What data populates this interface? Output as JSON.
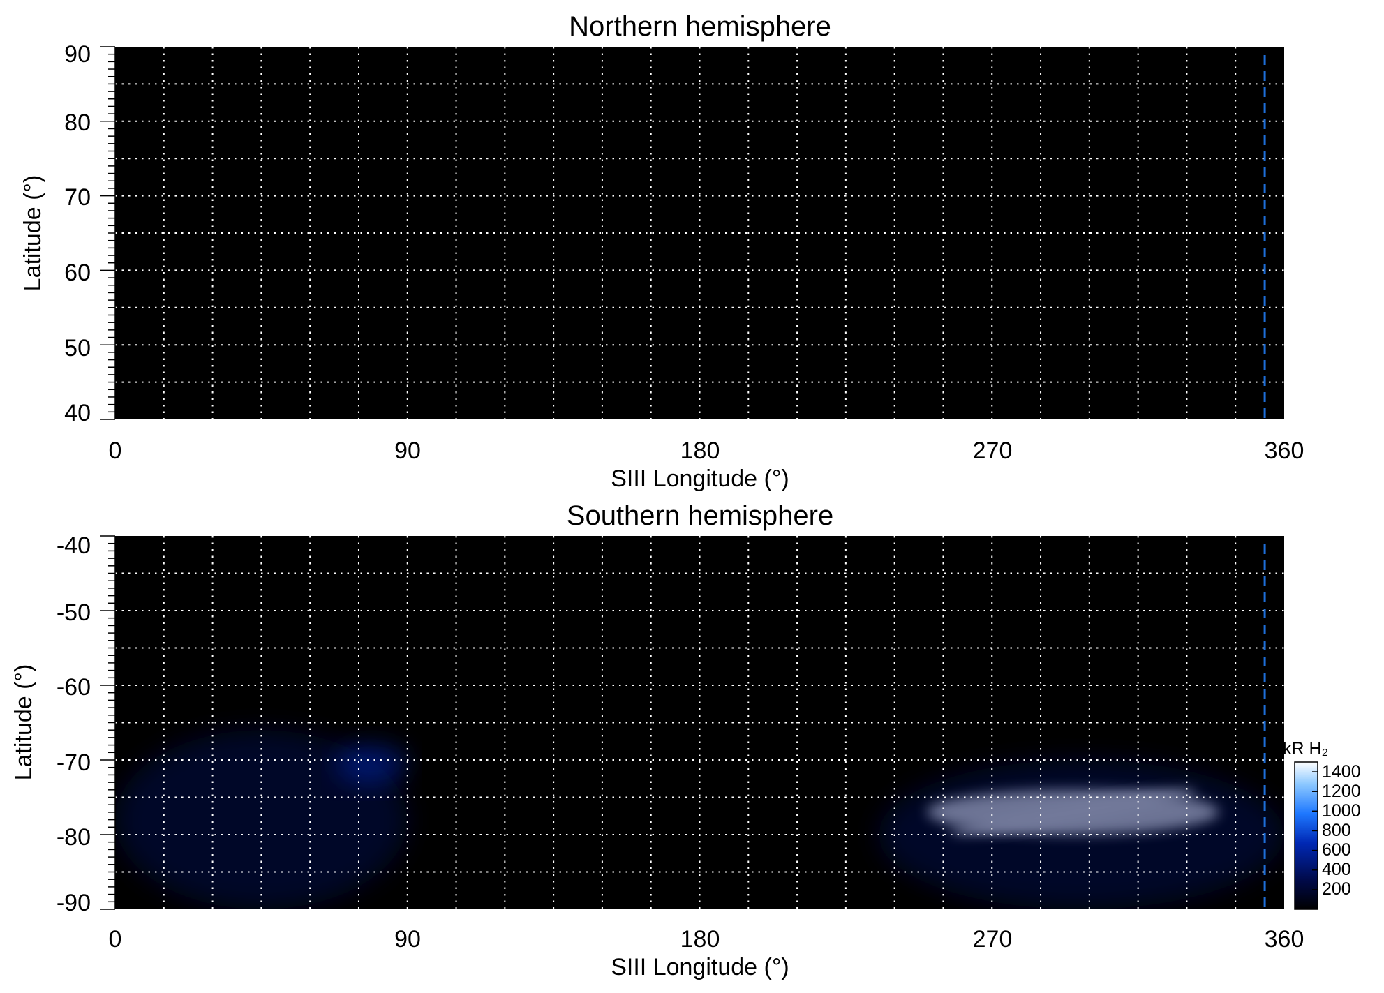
{
  "chart_data": [
    {
      "type": "heatmap",
      "title": "Northern hemisphere",
      "xlabel": "SIII Longitude (°)",
      "ylabel": "Latitude (°)",
      "xlim": [
        0,
        360
      ],
      "ylim": [
        40,
        90
      ],
      "xticks": [
        0,
        90,
        180,
        270,
        360
      ],
      "yticks": [
        90,
        80,
        70,
        60,
        50,
        40
      ],
      "grid": true,
      "grid_x_step": 15,
      "grid_y_step": 5,
      "background_color": "#000000",
      "grid_color": "#ffffff",
      "marker_line": {
        "x": 354,
        "color": "#1e6fd9",
        "style": "dashed"
      },
      "emission": []
    },
    {
      "type": "heatmap",
      "title": "Southern hemisphere",
      "xlabel": "SIII Longitude (°)",
      "ylabel": "Latitude (°)",
      "xlim": [
        0,
        360
      ],
      "ylim": [
        -90,
        -40
      ],
      "xticks": [
        0,
        90,
        180,
        270,
        360
      ],
      "yticks": [
        -40,
        -50,
        -60,
        -70,
        -80,
        -90
      ],
      "grid": true,
      "grid_x_step": 15,
      "grid_y_step": 5,
      "background_color": "#000000",
      "grid_color": "#ffffff",
      "marker_line": {
        "x": 354,
        "color": "#1e6fd9",
        "style": "dashed"
      },
      "emission": [
        {
          "lon": [
            0,
            90
          ],
          "lat": [
            -90,
            -66
          ],
          "intensity_kR": 300
        },
        {
          "lon": [
            68,
            90
          ],
          "lat": [
            -73,
            -68
          ],
          "intensity_kR": 700
        },
        {
          "lon": [
            250,
            340
          ],
          "lat": [
            -80,
            -74
          ],
          "intensity_kR": 1400
        },
        {
          "lon": [
            235,
            360
          ],
          "lat": [
            -90,
            -70
          ],
          "intensity_kR": 250
        },
        {
          "lon": [
            120,
            250
          ],
          "lat": [
            -90,
            -87
          ],
          "intensity_kR": 150
        }
      ],
      "colorbar": {
        "unit_label": "kR H₂",
        "ticks": [
          1400,
          1200,
          1000,
          800,
          600,
          400,
          200
        ],
        "range": [
          0,
          1500
        ],
        "colors": [
          "#000000",
          "#000a4a",
          "#0028b4",
          "#1e78ff",
          "#8cc8ff",
          "#ffffff"
        ]
      }
    }
  ]
}
